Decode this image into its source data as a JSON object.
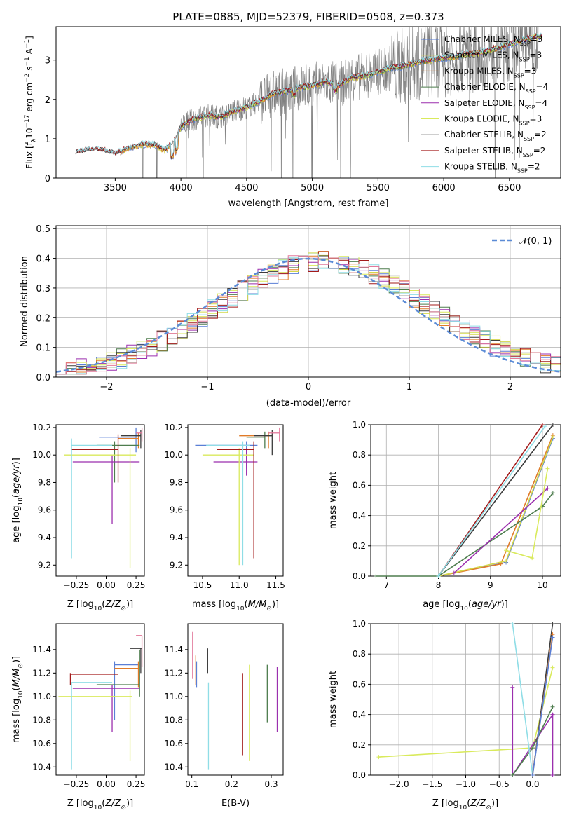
{
  "figure": {
    "title": "PLATE=0885, MJD=52379, FIBERID=0508, z=0.373"
  },
  "colors": {
    "Chabrier MILES": "#5a7fd6",
    "Salpeter MILES": "#d4d84a",
    "Kroupa MILES": "#e07b28",
    "Chabrier ELODIE": "#4e7d4e",
    "Salpeter ELODIE": "#9b2fae",
    "Kroupa ELODIE": "#d9ea5c",
    "Chabrier STELIB": "#3c3c3c",
    "Salpeter STELIB": "#a31b1b",
    "Kroupa STELIB": "#8fdde6",
    "data": "#808080",
    "pink": "#e2799b",
    "normal": "#5b8bd6"
  },
  "chart_data": [
    {
      "id": "spectrum",
      "type": "line",
      "title": "PLATE=0885, MJD=52379, FIBERID=0508, z=0.373",
      "xlabel": "wavelength [Angstrom, rest frame]",
      "ylabel_parts": [
        "Flux [f",
        "λ",
        "10",
        "−17",
        " erg cm",
        "−2",
        " s",
        "−1",
        " A",
        "−1",
        "]"
      ],
      "xlim": [
        3050,
        6890
      ],
      "ylim": [
        0,
        3.85
      ],
      "xticks": [
        3500,
        4000,
        4500,
        5000,
        5500,
        6000,
        6500
      ],
      "yticks": [
        0,
        1,
        2,
        3
      ],
      "legend_position": "top-right",
      "legend": [
        {
          "name": "Chabrier MILES",
          "nssp": "3"
        },
        {
          "name": "Salpeter MILES",
          "nssp": "3"
        },
        {
          "name": "Kroupa MILES",
          "nssp": "3"
        },
        {
          "name": "Chabrier ELODIE",
          "nssp": "4"
        },
        {
          "name": "Salpeter ELODIE",
          "nssp": "4"
        },
        {
          "name": "Kroupa ELODIE",
          "nssp": "3"
        },
        {
          "name": "Chabrier STELIB",
          "nssp": "2"
        },
        {
          "name": "Salpeter STELIB",
          "nssp": "2"
        },
        {
          "name": "Kroupa STELIB",
          "nssp": "2"
        }
      ],
      "continuum": [
        [
          3200,
          0.65
        ],
        [
          3300,
          0.72
        ],
        [
          3400,
          0.72
        ],
        [
          3500,
          0.62
        ],
        [
          3600,
          0.75
        ],
        [
          3700,
          0.85
        ],
        [
          3800,
          0.85
        ],
        [
          3880,
          0.7
        ],
        [
          3950,
          0.95
        ],
        [
          4000,
          1.3
        ],
        [
          4100,
          1.5
        ],
        [
          4200,
          1.6
        ],
        [
          4300,
          1.55
        ],
        [
          4400,
          1.7
        ],
        [
          4500,
          1.8
        ],
        [
          4600,
          1.95
        ],
        [
          4700,
          2.15
        ],
        [
          4800,
          2.2
        ],
        [
          4900,
          2.3
        ],
        [
          5000,
          2.35
        ],
        [
          5100,
          2.45
        ],
        [
          5200,
          2.35
        ],
        [
          5300,
          2.55
        ],
        [
          5400,
          2.6
        ],
        [
          5500,
          2.7
        ],
        [
          5600,
          2.8
        ],
        [
          5700,
          2.85
        ],
        [
          5800,
          2.95
        ],
        [
          5900,
          3.0
        ],
        [
          6000,
          3.05
        ],
        [
          6100,
          3.1
        ],
        [
          6200,
          3.15
        ],
        [
          6300,
          3.2
        ],
        [
          6400,
          3.3
        ],
        [
          6500,
          3.4
        ],
        [
          6600,
          3.5
        ],
        [
          6700,
          3.6
        ]
      ]
    },
    {
      "id": "residuals",
      "type": "histogram",
      "xlabel": "(data-model)/error",
      "ylabel": "Normed distribution",
      "xlim": [
        -2.5,
        2.5
      ],
      "ylim": [
        0,
        0.51
      ],
      "xticks": [
        -2,
        -1,
        0,
        1,
        2
      ],
      "xticklabels": [
        "−2",
        "−1",
        "0",
        "1",
        "2"
      ],
      "yticks": [
        0.0,
        0.1,
        0.2,
        0.3,
        0.4,
        0.5
      ],
      "yticklabels": [
        "0.0",
        "0.1",
        "0.2",
        "0.3",
        "0.4",
        "0.5"
      ],
      "grid": true,
      "legend_position": "top-right",
      "legend_label": "𝒩(0, 1)",
      "bin_edges_start": -2.5,
      "bin_width": 0.1
    },
    {
      "id": "age-vs-Z",
      "type": "errorbar",
      "xlabel_text": "Z [log",
      "xlabel_sub": "10",
      "xlabel_rest": "(Z/Z",
      "xlabel_sun": "⊙",
      "xlabel_end": ")]",
      "ylabel": "age  [log₁₀(age/yr)]",
      "xlim": [
        -0.42,
        0.32
      ],
      "ylim": [
        9.12,
        10.22
      ],
      "xticks": [
        -0.25,
        0.0,
        0.25
      ],
      "xticklabels": [
        "−0.25",
        "0.00",
        "0.25"
      ],
      "yticks": [
        9.2,
        9.4,
        9.6,
        9.8,
        10.0,
        10.2
      ],
      "yticklabels": [
        "9.2",
        "9.4",
        "9.6",
        "9.8",
        "10.0",
        "10.2"
      ]
    },
    {
      "id": "age-vs-mass",
      "type": "errorbar",
      "xlabel": "mass [log₁₀(M/M⊙)]",
      "xlim": [
        10.3,
        11.6
      ],
      "ylim": [
        9.12,
        10.22
      ],
      "xticks": [
        10.5,
        11.0,
        11.5
      ],
      "xticklabels": [
        "10.5",
        "11.0",
        "11.5"
      ],
      "yticks": [
        9.2,
        9.4,
        9.6,
        9.8,
        10.0,
        10.2
      ],
      "yticklabels": [
        "9.2",
        "9.4",
        "9.6",
        "9.8",
        "10.0",
        "10.2"
      ]
    },
    {
      "id": "mass-weight-vs-age",
      "type": "line",
      "xlabel": "age  [log₁₀(age/yr)]",
      "ylabel": "mass weight",
      "xlim": [
        6.7,
        10.35
      ],
      "ylim": [
        0,
        1.0
      ],
      "xticks": [
        7,
        8,
        9,
        10
      ],
      "xticklabels": [
        "7",
        "8",
        "9",
        "10"
      ],
      "yticks": [
        0.0,
        0.2,
        0.4,
        0.6,
        0.8,
        1.0
      ],
      "yticklabels": [
        "0.0",
        "0.2",
        "0.4",
        "0.6",
        "0.8",
        "1.0"
      ],
      "grid": true,
      "series": [
        {
          "model": "Chabrier MILES",
          "x": [
            8.0,
            9.3,
            10.2
          ],
          "y": [
            0.0,
            0.09,
            0.91
          ]
        },
        {
          "model": "Kroupa MILES",
          "x": [
            8.0,
            9.2,
            10.2
          ],
          "y": [
            0.0,
            0.08,
            0.93
          ]
        },
        {
          "model": "Salpeter MILES",
          "x": [
            8.0,
            9.3,
            10.2
          ],
          "y": [
            0.0,
            0.1,
            0.92
          ]
        },
        {
          "model": "Chabrier ELODIE",
          "x": [
            6.8,
            8.0,
            10.0,
            10.2
          ],
          "y": [
            0.0,
            0.0,
            0.46,
            0.55
          ]
        },
        {
          "model": "Salpeter ELODIE",
          "x": [
            8.3,
            10.1
          ],
          "y": [
            0.02,
            0.58
          ]
        },
        {
          "model": "Kroupa ELODIE",
          "x": [
            9.3,
            9.8,
            10.1
          ],
          "y": [
            0.17,
            0.12,
            0.71
          ]
        },
        {
          "model": "Chabrier STELIB",
          "x": [
            8.0,
            10.2
          ],
          "y": [
            0.0,
            1.0
          ]
        },
        {
          "model": "Salpeter STELIB",
          "x": [
            8.0,
            10.0
          ],
          "y": [
            0.0,
            1.0
          ]
        },
        {
          "model": "Kroupa STELIB",
          "x": [
            8.0,
            10.05
          ],
          "y": [
            0.0,
            0.99
          ]
        }
      ]
    },
    {
      "id": "mass-vs-Z",
      "type": "errorbar",
      "ylabel": "mass [log₁₀(M/M⊙)]",
      "xlim": [
        -0.42,
        0.32
      ],
      "ylim": [
        10.33,
        11.62
      ],
      "xticks": [
        -0.25,
        0.0,
        0.25
      ],
      "xticklabels": [
        "−0.25",
        "0.00",
        "0.25"
      ],
      "yticks": [
        10.4,
        10.6,
        10.8,
        11.0,
        11.2,
        11.4
      ],
      "yticklabels": [
        "10.4",
        "10.6",
        "10.8",
        "11.0",
        "11.2",
        "11.4"
      ]
    },
    {
      "id": "mass-vs-EBV",
      "type": "errorbar",
      "xlabel": "E(B-V)",
      "xlim": [
        0.09,
        0.33
      ],
      "ylim": [
        10.33,
        11.62
      ],
      "xticks": [
        0.1,
        0.2,
        0.3
      ],
      "xticklabels": [
        "0.1",
        "0.2",
        "0.3"
      ],
      "yticks": [
        10.4,
        10.6,
        10.8,
        11.0,
        11.2,
        11.4
      ],
      "yticklabels": [
        "10.4",
        "10.6",
        "10.8",
        "11.0",
        "11.2",
        "11.4"
      ]
    },
    {
      "id": "mass-weight-vs-Z",
      "type": "line",
      "ylabel": "mass weight",
      "xlim": [
        -2.42,
        0.42
      ],
      "ylim": [
        0,
        1.0
      ],
      "xticks": [
        -2.0,
        -1.5,
        -1.0,
        -0.5,
        0.0
      ],
      "xticklabels": [
        "−2.0",
        "−1.5",
        "−1.0",
        "−0.5",
        "0.0"
      ],
      "yticks": [
        0.0,
        0.2,
        0.4,
        0.6,
        0.8,
        1.0
      ],
      "yticklabels": [
        "0.0",
        "0.2",
        "0.4",
        "0.6",
        "0.8",
        "1.0"
      ],
      "grid": true,
      "series": [
        {
          "model": "Kroupa ELODIE",
          "x": [
            -2.3,
            0.0,
            0.3
          ],
          "y": [
            0.12,
            0.18,
            0.71
          ]
        },
        {
          "model": "Salpeter ELODIE",
          "x": [
            -0.3,
            -0.3,
            0.3,
            0.3
          ],
          "y": [
            0.58,
            0.0,
            0.4,
            0.0
          ]
        },
        {
          "model": "Chabrier ELODIE",
          "x": [
            -0.3,
            0.0,
            0.3
          ],
          "y": [
            0.0,
            0.18,
            0.45
          ]
        },
        {
          "model": "Kroupa STELIB",
          "x": [
            -0.3,
            0.0
          ],
          "y": [
            1.0,
            0.0
          ]
        },
        {
          "model": "Chabrier STELIB",
          "x": [
            0.0,
            0.3
          ],
          "y": [
            0.0,
            1.0
          ]
        },
        {
          "model": "Kroupa MILES",
          "x": [
            0.0,
            0.3
          ],
          "y": [
            0.0,
            0.93
          ]
        },
        {
          "model": "Chabrier MILES",
          "x": [
            0.0,
            0.3
          ],
          "y": [
            0.0,
            0.91
          ]
        }
      ]
    }
  ]
}
